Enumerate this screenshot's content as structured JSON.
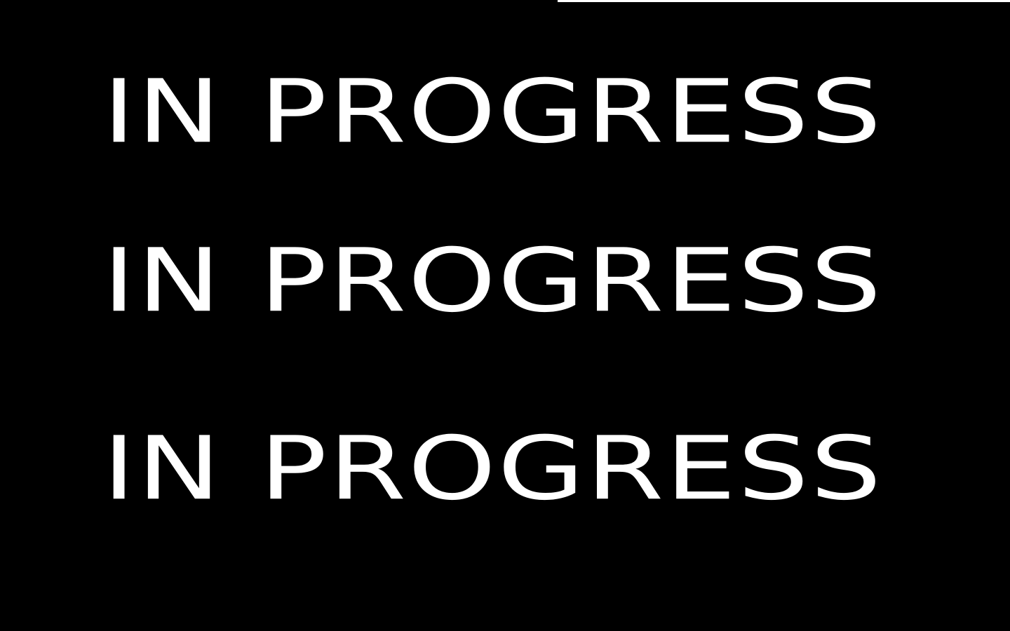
{
  "colors": {
    "background": "#000000",
    "text": "#ffffff",
    "edge_line": "#ffffff"
  },
  "lines": [
    {
      "text": "IN PROGRESS"
    },
    {
      "text": "IN PROGRESS"
    },
    {
      "text": "IN PROGRESS"
    }
  ]
}
